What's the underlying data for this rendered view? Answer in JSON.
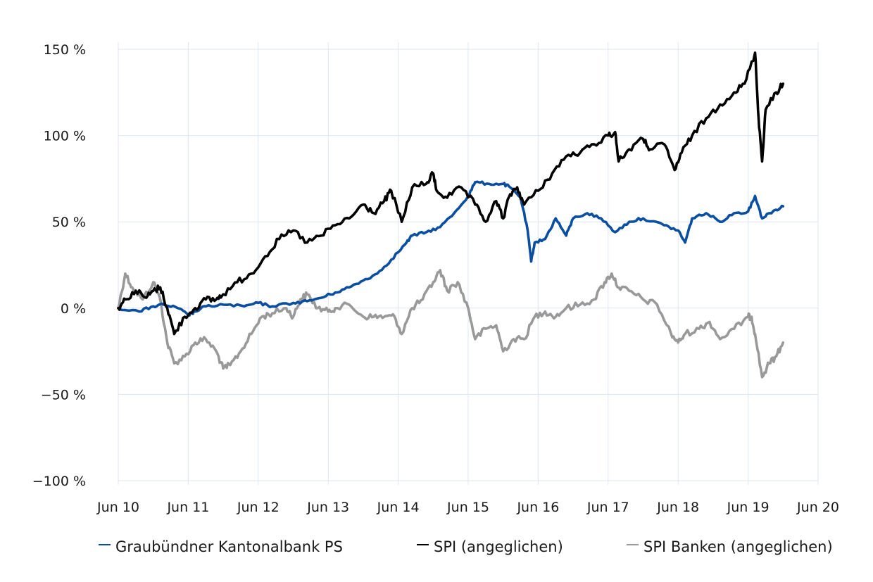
{
  "chart_data": {
    "type": "line",
    "title": "",
    "xlabel": "",
    "ylabel": "",
    "x_ticks": [
      "Jun 10",
      "Jun 11",
      "Jun 12",
      "Jun 13",
      "Jun 14",
      "Jun 15",
      "Jun 16",
      "Jun 17",
      "Jun 18",
      "Jun 19",
      "Jun 20"
    ],
    "x_range": [
      2010.5,
      2020.5
    ],
    "y_ticks": [
      {
        "value": 150,
        "label": "150 %"
      },
      {
        "value": 100,
        "label": "100 %"
      },
      {
        "value": 50,
        "label": "50 %"
      },
      {
        "value": 0,
        "label": "0 %"
      },
      {
        "value": -50,
        "label": "−50 %"
      },
      {
        "value": -100,
        "label": "−100 %"
      }
    ],
    "ylim": [
      -100,
      150
    ],
    "grid": true,
    "legend_position": "bottom",
    "series": [
      {
        "name": "Graubündner Kantonalbank PS",
        "color": "#0a4ea2",
        "points": [
          [
            2010.5,
            0
          ],
          [
            2010.8,
            -2
          ],
          [
            2011.0,
            1
          ],
          [
            2011.15,
            2
          ],
          [
            2011.35,
            0
          ],
          [
            2011.5,
            -4
          ],
          [
            2011.6,
            -2
          ],
          [
            2011.75,
            1
          ],
          [
            2012.0,
            2
          ],
          [
            2012.3,
            1
          ],
          [
            2012.5,
            3
          ],
          [
            2012.7,
            1
          ],
          [
            2013.0,
            3
          ],
          [
            2013.2,
            4
          ],
          [
            2013.4,
            6
          ],
          [
            2013.6,
            9
          ],
          [
            2013.8,
            12
          ],
          [
            2014.0,
            16
          ],
          [
            2014.2,
            20
          ],
          [
            2014.4,
            28
          ],
          [
            2014.6,
            37
          ],
          [
            2014.7,
            42
          ],
          [
            2014.9,
            44
          ],
          [
            2015.1,
            47
          ],
          [
            2015.3,
            55
          ],
          [
            2015.5,
            65
          ],
          [
            2015.6,
            73
          ],
          [
            2015.8,
            72
          ],
          [
            2016.0,
            72
          ],
          [
            2016.1,
            70
          ],
          [
            2016.25,
            64
          ],
          [
            2016.35,
            45
          ],
          [
            2016.4,
            27
          ],
          [
            2016.45,
            38
          ],
          [
            2016.6,
            40
          ],
          [
            2016.75,
            52
          ],
          [
            2016.9,
            42
          ],
          [
            2017.0,
            52
          ],
          [
            2017.2,
            55
          ],
          [
            2017.4,
            52
          ],
          [
            2017.6,
            44
          ],
          [
            2017.8,
            50
          ],
          [
            2018.0,
            52
          ],
          [
            2018.3,
            48
          ],
          [
            2018.5,
            45
          ],
          [
            2018.6,
            38
          ],
          [
            2018.7,
            52
          ],
          [
            2018.9,
            55
          ],
          [
            2019.1,
            50
          ],
          [
            2019.3,
            55
          ],
          [
            2019.5,
            56
          ],
          [
            2019.6,
            65
          ],
          [
            2019.7,
            52
          ],
          [
            2019.8,
            55
          ],
          [
            2019.9,
            57
          ],
          [
            2020.0,
            59
          ]
        ]
      },
      {
        "name": "SPI (angeglichen)",
        "color": "#000000",
        "points": [
          [
            2010.5,
            0
          ],
          [
            2010.6,
            5
          ],
          [
            2010.75,
            10
          ],
          [
            2010.9,
            6
          ],
          [
            2011.0,
            10
          ],
          [
            2011.1,
            12
          ],
          [
            2011.2,
            0
          ],
          [
            2011.3,
            -15
          ],
          [
            2011.45,
            -5
          ],
          [
            2011.6,
            0
          ],
          [
            2011.75,
            5
          ],
          [
            2011.9,
            5
          ],
          [
            2012.0,
            8
          ],
          [
            2012.2,
            15
          ],
          [
            2012.4,
            20
          ],
          [
            2012.6,
            30
          ],
          [
            2012.8,
            40
          ],
          [
            2013.0,
            45
          ],
          [
            2013.2,
            38
          ],
          [
            2013.4,
            42
          ],
          [
            2013.6,
            48
          ],
          [
            2013.8,
            52
          ],
          [
            2014.0,
            60
          ],
          [
            2014.15,
            55
          ],
          [
            2014.3,
            62
          ],
          [
            2014.4,
            68
          ],
          [
            2014.55,
            50
          ],
          [
            2014.7,
            70
          ],
          [
            2014.9,
            72
          ],
          [
            2015.0,
            78
          ],
          [
            2015.05,
            68
          ],
          [
            2015.2,
            64
          ],
          [
            2015.4,
            70
          ],
          [
            2015.6,
            60
          ],
          [
            2015.75,
            50
          ],
          [
            2015.9,
            62
          ],
          [
            2016.0,
            52
          ],
          [
            2016.1,
            66
          ],
          [
            2016.2,
            70
          ],
          [
            2016.3,
            60
          ],
          [
            2016.5,
            68
          ],
          [
            2016.7,
            78
          ],
          [
            2016.9,
            88
          ],
          [
            2017.1,
            90
          ],
          [
            2017.3,
            95
          ],
          [
            2017.5,
            100
          ],
          [
            2017.6,
            102
          ],
          [
            2017.65,
            85
          ],
          [
            2017.8,
            92
          ],
          [
            2018.0,
            98
          ],
          [
            2018.1,
            92
          ],
          [
            2018.3,
            95
          ],
          [
            2018.45,
            80
          ],
          [
            2018.55,
            90
          ],
          [
            2018.7,
            100
          ],
          [
            2018.9,
            110
          ],
          [
            2019.1,
            118
          ],
          [
            2019.3,
            125
          ],
          [
            2019.45,
            130
          ],
          [
            2019.6,
            148
          ],
          [
            2019.65,
            110
          ],
          [
            2019.7,
            85
          ],
          [
            2019.75,
            115
          ],
          [
            2019.9,
            125
          ],
          [
            2020.0,
            130
          ]
        ]
      },
      {
        "name": "SPI Banken (angeglichen)",
        "color": "#999999",
        "points": [
          [
            2010.5,
            0
          ],
          [
            2010.6,
            20
          ],
          [
            2010.7,
            12
          ],
          [
            2010.85,
            5
          ],
          [
            2011.0,
            15
          ],
          [
            2011.1,
            5
          ],
          [
            2011.2,
            -20
          ],
          [
            2011.3,
            -32
          ],
          [
            2011.45,
            -28
          ],
          [
            2011.6,
            -20
          ],
          [
            2011.75,
            -18
          ],
          [
            2011.9,
            -25
          ],
          [
            2012.0,
            -35
          ],
          [
            2012.1,
            -33
          ],
          [
            2012.25,
            -25
          ],
          [
            2012.4,
            -15
          ],
          [
            2012.55,
            -5
          ],
          [
            2012.7,
            -3
          ],
          [
            2012.9,
            0
          ],
          [
            2013.0,
            -5
          ],
          [
            2013.1,
            5
          ],
          [
            2013.2,
            8
          ],
          [
            2013.35,
            0
          ],
          [
            2013.5,
            -2
          ],
          [
            2013.6,
            0
          ],
          [
            2013.8,
            2
          ],
          [
            2014.0,
            -5
          ],
          [
            2014.15,
            -5
          ],
          [
            2014.3,
            -5
          ],
          [
            2014.45,
            -5
          ],
          [
            2014.55,
            -15
          ],
          [
            2014.7,
            0
          ],
          [
            2014.85,
            5
          ],
          [
            2015.0,
            15
          ],
          [
            2015.1,
            22
          ],
          [
            2015.2,
            10
          ],
          [
            2015.35,
            15
          ],
          [
            2015.5,
            0
          ],
          [
            2015.6,
            -18
          ],
          [
            2015.75,
            -12
          ],
          [
            2015.9,
            -10
          ],
          [
            2016.0,
            -25
          ],
          [
            2016.15,
            -18
          ],
          [
            2016.3,
            -18
          ],
          [
            2016.45,
            -5
          ],
          [
            2016.6,
            -2
          ],
          [
            2016.75,
            -5
          ],
          [
            2016.9,
            0
          ],
          [
            2017.1,
            2
          ],
          [
            2017.3,
            5
          ],
          [
            2017.45,
            15
          ],
          [
            2017.55,
            20
          ],
          [
            2017.65,
            12
          ],
          [
            2017.8,
            10
          ],
          [
            2018.0,
            5
          ],
          [
            2018.2,
            2
          ],
          [
            2018.4,
            -15
          ],
          [
            2018.5,
            -20
          ],
          [
            2018.6,
            -15
          ],
          [
            2018.8,
            -12
          ],
          [
            2018.95,
            -8
          ],
          [
            2019.1,
            -18
          ],
          [
            2019.3,
            -12
          ],
          [
            2019.5,
            -5
          ],
          [
            2019.55,
            -5
          ],
          [
            2019.6,
            -15
          ],
          [
            2019.7,
            -40
          ],
          [
            2019.8,
            -32
          ],
          [
            2019.9,
            -28
          ],
          [
            2020.0,
            -20
          ]
        ]
      }
    ]
  }
}
